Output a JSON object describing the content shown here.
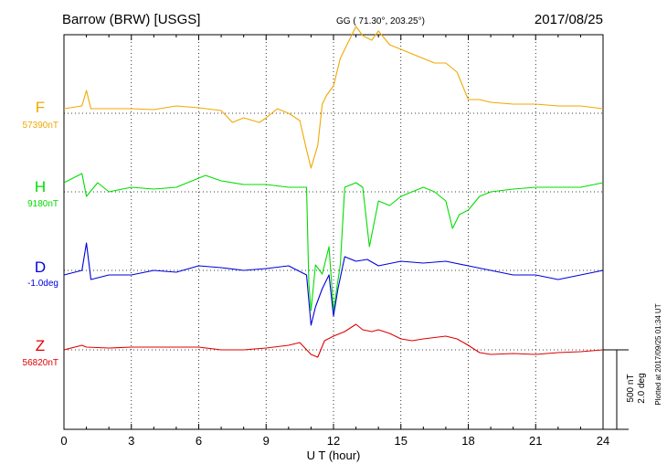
{
  "header": {
    "station": "Barrow (BRW)  [USGS]",
    "coords": "GG ( 71.30°, 203.25°)",
    "date": "2017/08/25"
  },
  "plotted_note": "Plotted at 2017/09/25 01:34 UT",
  "scale": {
    "line1": "500 nT",
    "line2": "2.0 deg"
  },
  "colors": {
    "F": "#f0a800",
    "H": "#00dd00",
    "D": "#0000dd",
    "Z": "#e00000",
    "axis": "#000000"
  },
  "chart_data": {
    "type": "line",
    "xlabel": "U T (hour)",
    "xlim": [
      0,
      24
    ],
    "xticks": [
      0,
      3,
      6,
      9,
      12,
      15,
      18,
      21,
      24
    ],
    "grid": true,
    "series": [
      {
        "name": "F",
        "baseline_label": "57390nT",
        "color": "#f0a800",
        "points": [
          [
            0,
            -5
          ],
          [
            0.8,
            -8
          ],
          [
            1,
            -25
          ],
          [
            1.2,
            -5
          ],
          [
            2,
            -5
          ],
          [
            3,
            -5
          ],
          [
            4,
            -4
          ],
          [
            5,
            -8
          ],
          [
            6,
            -6
          ],
          [
            7,
            -3
          ],
          [
            7.5,
            10
          ],
          [
            8,
            5
          ],
          [
            8.7,
            10
          ],
          [
            9,
            5
          ],
          [
            9.5,
            -5
          ],
          [
            10,
            0
          ],
          [
            10.5,
            8
          ],
          [
            10.8,
            40
          ],
          [
            11,
            60
          ],
          [
            11.3,
            35
          ],
          [
            11.5,
            -10
          ],
          [
            11.7,
            -20
          ],
          [
            12,
            -30
          ],
          [
            12.3,
            -60
          ],
          [
            12.5,
            -70
          ],
          [
            13,
            -95
          ],
          [
            13.3,
            -85
          ],
          [
            13.7,
            -80
          ],
          [
            14,
            -90
          ],
          [
            14.5,
            -75
          ],
          [
            15,
            -70
          ],
          [
            15.5,
            -65
          ],
          [
            16,
            -60
          ],
          [
            16.5,
            -55
          ],
          [
            17,
            -55
          ],
          [
            17.5,
            -45
          ],
          [
            18,
            -15
          ],
          [
            18.5,
            -15
          ],
          [
            19,
            -12
          ],
          [
            20,
            -10
          ],
          [
            21,
            -10
          ],
          [
            22,
            -8
          ],
          [
            23,
            -8
          ],
          [
            24,
            -5
          ]
        ]
      },
      {
        "name": "H",
        "baseline_label": "9180nT",
        "color": "#00dd00",
        "points": [
          [
            0,
            -10
          ],
          [
            0.8,
            -20
          ],
          [
            1,
            5
          ],
          [
            1.5,
            -10
          ],
          [
            2,
            0
          ],
          [
            3,
            -5
          ],
          [
            4,
            -3
          ],
          [
            5,
            -5
          ],
          [
            6,
            -15
          ],
          [
            6.3,
            -18
          ],
          [
            7,
            -12
          ],
          [
            8,
            -8
          ],
          [
            9,
            -8
          ],
          [
            10,
            -5
          ],
          [
            10.8,
            -5
          ],
          [
            10.9,
            100
          ],
          [
            11,
            130
          ],
          [
            11.2,
            80
          ],
          [
            11.5,
            90
          ],
          [
            11.8,
            60
          ],
          [
            12,
            130
          ],
          [
            12.3,
            80
          ],
          [
            12.5,
            -5
          ],
          [
            13,
            -10
          ],
          [
            13.3,
            -5
          ],
          [
            13.6,
            60
          ],
          [
            14,
            10
          ],
          [
            14.5,
            15
          ],
          [
            15,
            5
          ],
          [
            16,
            -5
          ],
          [
            16.5,
            0
          ],
          [
            17,
            10
          ],
          [
            17.3,
            40
          ],
          [
            17.6,
            25
          ],
          [
            18,
            20
          ],
          [
            18.5,
            5
          ],
          [
            19,
            0
          ],
          [
            20,
            -3
          ],
          [
            21,
            -5
          ],
          [
            22,
            -5
          ],
          [
            23,
            -5
          ],
          [
            24,
            -10
          ]
        ]
      },
      {
        "name": "D",
        "baseline_label": "-1.0deg",
        "color": "#0000dd",
        "points": [
          [
            0,
            5
          ],
          [
            0.8,
            0
          ],
          [
            1,
            -30
          ],
          [
            1.2,
            10
          ],
          [
            2,
            5
          ],
          [
            3,
            5
          ],
          [
            4,
            0
          ],
          [
            5,
            2
          ],
          [
            6,
            -5
          ],
          [
            7,
            -3
          ],
          [
            8,
            0
          ],
          [
            9,
            -2
          ],
          [
            10,
            -5
          ],
          [
            10.8,
            5
          ],
          [
            11,
            60
          ],
          [
            11.2,
            40
          ],
          [
            11.5,
            20
          ],
          [
            11.8,
            5
          ],
          [
            12,
            50
          ],
          [
            12.2,
            20
          ],
          [
            12.5,
            -15
          ],
          [
            13,
            -10
          ],
          [
            13.5,
            -12
          ],
          [
            14,
            -5
          ],
          [
            15,
            -10
          ],
          [
            16,
            -8
          ],
          [
            17,
            -10
          ],
          [
            18,
            -5
          ],
          [
            19,
            0
          ],
          [
            20,
            5
          ],
          [
            21,
            5
          ],
          [
            22,
            10
          ],
          [
            23,
            5
          ],
          [
            24,
            0
          ]
        ]
      },
      {
        "name": "Z",
        "baseline_label": "56820nT",
        "color": "#e00000",
        "points": [
          [
            0,
            0
          ],
          [
            0.8,
            -5
          ],
          [
            1,
            -3
          ],
          [
            2,
            -2
          ],
          [
            3,
            -3
          ],
          [
            4,
            -3
          ],
          [
            5,
            -3
          ],
          [
            6,
            -3
          ],
          [
            7,
            0
          ],
          [
            8,
            0
          ],
          [
            9,
            -2
          ],
          [
            10,
            -5
          ],
          [
            10.5,
            -8
          ],
          [
            11,
            5
          ],
          [
            11.3,
            8
          ],
          [
            11.6,
            -10
          ],
          [
            12,
            -15
          ],
          [
            12.5,
            -20
          ],
          [
            13,
            -28
          ],
          [
            13.3,
            -22
          ],
          [
            13.7,
            -20
          ],
          [
            14,
            -22
          ],
          [
            14.5,
            -18
          ],
          [
            15,
            -12
          ],
          [
            15.5,
            -10
          ],
          [
            16,
            -12
          ],
          [
            17,
            -15
          ],
          [
            17.5,
            -12
          ],
          [
            18,
            -5
          ],
          [
            18.5,
            3
          ],
          [
            19,
            5
          ],
          [
            20,
            4
          ],
          [
            21,
            5
          ],
          [
            22,
            3
          ],
          [
            23,
            2
          ],
          [
            24,
            0
          ]
        ]
      }
    ]
  }
}
